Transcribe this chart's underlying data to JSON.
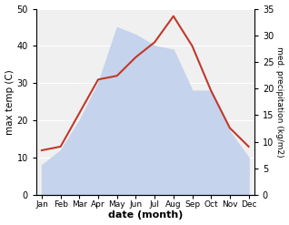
{
  "months": [
    "Jan",
    "Feb",
    "Mar",
    "Apr",
    "May",
    "Jun",
    "Jul",
    "Aug",
    "Sep",
    "Oct",
    "Nov",
    "Dec"
  ],
  "temperature": [
    12,
    13,
    22,
    31,
    32,
    37,
    41,
    48,
    40,
    28,
    18,
    13
  ],
  "precipitation_left": [
    8,
    12,
    20,
    30,
    45,
    43,
    40,
    39,
    28,
    28,
    17,
    10
  ],
  "temp_ylim": [
    0,
    50
  ],
  "precip_ylim": [
    0,
    35
  ],
  "temp_color": "#c0392b",
  "precip_fill_color": "#c5d4ec",
  "xlabel": "date (month)",
  "ylabel_left": "max temp (C)",
  "ylabel_right": "med. precipitation (kg/m2)",
  "bg_color": "#ffffff",
  "plot_bg_color": "#f0f0f0",
  "grid_color": "#ffffff"
}
